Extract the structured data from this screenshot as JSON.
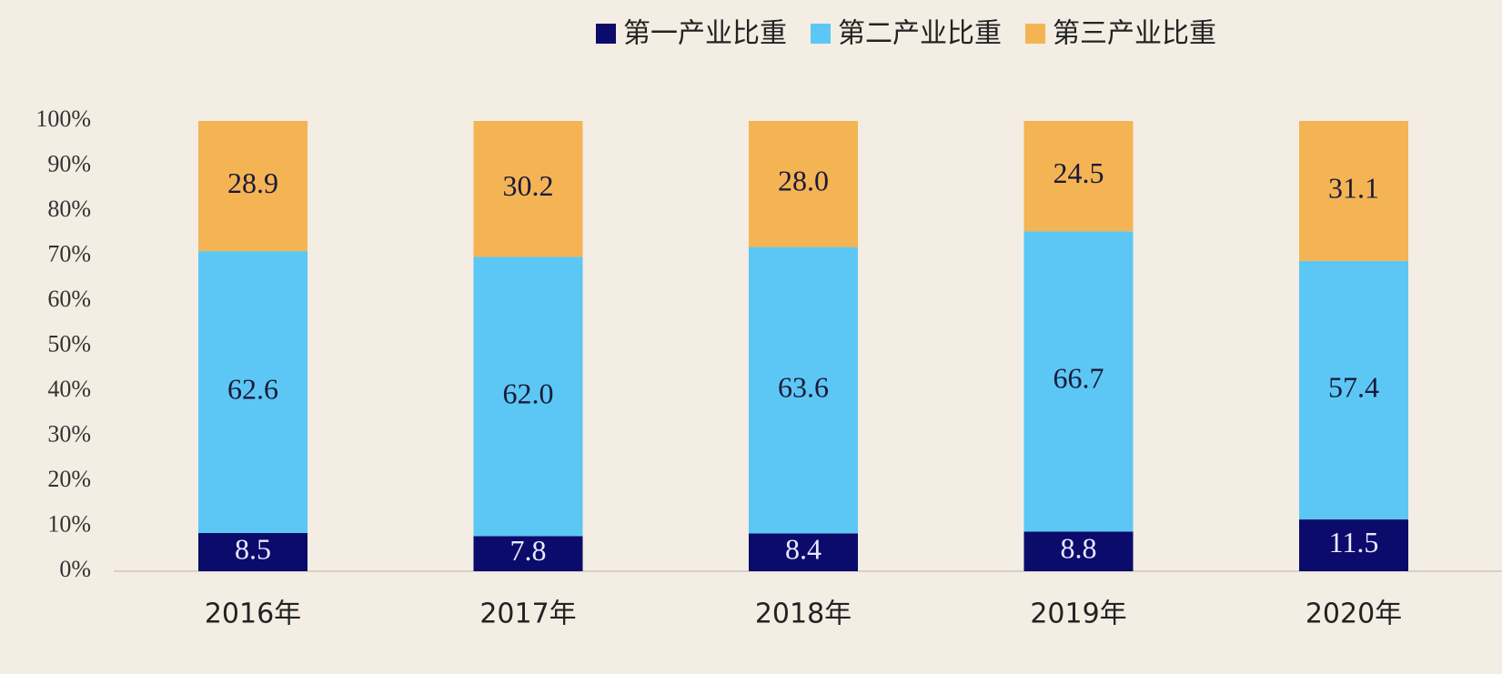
{
  "chart_data": {
    "type": "stacked_bar",
    "categories": [
      "2016年",
      "2017年",
      "2018年",
      "2019年",
      "2020年"
    ],
    "series": [
      {
        "name": "第一产业比重",
        "color": "#0b0b6b",
        "values": [
          8.5,
          7.8,
          8.4,
          8.8,
          11.5
        ],
        "value_labels": [
          "8.5",
          "7.8",
          "8.4",
          "8.8",
          "11.5"
        ]
      },
      {
        "name": "第二产业比重",
        "color": "#5cc7f4",
        "values": [
          62.6,
          62.0,
          63.6,
          66.7,
          57.4
        ],
        "value_labels": [
          "62.6",
          "62.0",
          "63.6",
          "66.7",
          "57.4"
        ]
      },
      {
        "name": "第三产业比重",
        "color": "#f5b453",
        "values": [
          28.9,
          30.2,
          28.0,
          24.5,
          31.1
        ],
        "value_labels": [
          "28.9",
          "30.2",
          "28.0",
          "24.5",
          "31.1"
        ]
      }
    ],
    "ylim": [
      0,
      100
    ],
    "yticks": [
      {
        "value": 0,
        "label": "0%"
      },
      {
        "value": 10,
        "label": "10%"
      },
      {
        "value": 20,
        "label": "20%"
      },
      {
        "value": 30,
        "label": "30%"
      },
      {
        "value": 40,
        "label": "40%"
      },
      {
        "value": 50,
        "label": "50%"
      },
      {
        "value": 60,
        "label": "60%"
      },
      {
        "value": 70,
        "label": "70%"
      },
      {
        "value": 80,
        "label": "80%"
      },
      {
        "value": 90,
        "label": "90%"
      },
      {
        "value": 100,
        "label": "100%"
      }
    ],
    "legend": "top-right"
  }
}
